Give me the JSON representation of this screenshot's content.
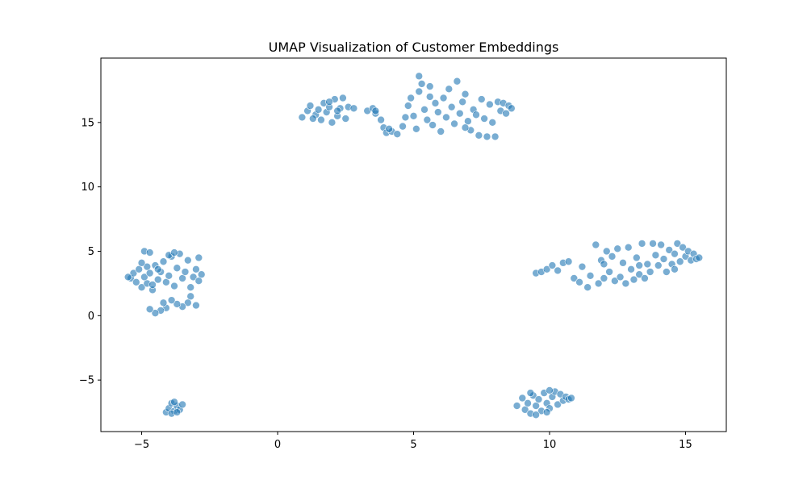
{
  "chart_data": {
    "type": "scatter",
    "title": "UMAP Visualization of Customer Embeddings",
    "xlabel": "",
    "ylabel": "",
    "xlim": [
      -6.5,
      16.5
    ],
    "ylim": [
      -9,
      20
    ],
    "x_ticks": [
      -5,
      0,
      5,
      10,
      15
    ],
    "y_ticks": [
      -5,
      0,
      5,
      10,
      15
    ],
    "x_tick_labels": [
      "−5",
      "0",
      "5",
      "10",
      "15"
    ],
    "y_tick_labels": [
      "−5",
      "0",
      "5",
      "10",
      "15"
    ],
    "grid": false,
    "legend": "none",
    "marker_color": "#1f77b4",
    "marker_edge_color": "#ffffff",
    "marker_alpha": 0.6,
    "series": [
      {
        "points": [
          [
            -5.4,
            2.9
          ],
          [
            -5.3,
            3.3
          ],
          [
            -5.2,
            2.6
          ],
          [
            -5.1,
            3.6
          ],
          [
            -5.0,
            2.2
          ],
          [
            -4.9,
            3.0
          ],
          [
            -4.8,
            3.8
          ],
          [
            -4.8,
            2.5
          ],
          [
            -4.7,
            3.3
          ],
          [
            -4.6,
            2.0
          ],
          [
            -4.5,
            3.9
          ],
          [
            -4.4,
            2.8
          ],
          [
            -4.3,
            3.4
          ],
          [
            -4.2,
            4.2
          ],
          [
            -4.1,
            2.6
          ],
          [
            -4.0,
            3.1
          ],
          [
            -3.9,
            4.6
          ],
          [
            -3.8,
            2.3
          ],
          [
            -3.7,
            3.7
          ],
          [
            -3.6,
            4.8
          ],
          [
            -3.5,
            2.9
          ],
          [
            -3.4,
            3.4
          ],
          [
            -3.3,
            4.3
          ],
          [
            -3.2,
            2.2
          ],
          [
            -3.1,
            3.0
          ],
          [
            -3.0,
            3.6
          ],
          [
            -2.9,
            4.5
          ],
          [
            -2.9,
            2.7
          ],
          [
            -2.8,
            3.2
          ],
          [
            -3.2,
            1.5
          ],
          [
            -3.3,
            1.0
          ],
          [
            -3.5,
            0.7
          ],
          [
            -3.7,
            0.9
          ],
          [
            -3.9,
            1.2
          ],
          [
            -4.1,
            0.6
          ],
          [
            -4.2,
            1.0
          ],
          [
            -4.3,
            0.4
          ],
          [
            -4.5,
            0.2
          ],
          [
            -4.7,
            0.5
          ],
          [
            -3.0,
            0.8
          ],
          [
            -4.9,
            5.0
          ],
          [
            -4.7,
            4.9
          ],
          [
            -4.0,
            4.7
          ],
          [
            -3.8,
            4.9
          ],
          [
            -4.4,
            3.6
          ],
          [
            -5.0,
            4.1
          ],
          [
            -5.5,
            3.0
          ],
          [
            -4.6,
            2.4
          ]
        ]
      },
      {
        "points": [
          [
            -4.1,
            -7.5
          ],
          [
            -4.0,
            -7.2
          ],
          [
            -3.9,
            -6.8
          ],
          [
            -3.8,
            -7.4
          ],
          [
            -3.7,
            -7.0
          ],
          [
            -3.6,
            -7.3
          ],
          [
            -3.5,
            -6.9
          ],
          [
            -3.9,
            -7.6
          ],
          [
            -3.8,
            -6.7
          ],
          [
            -3.7,
            -7.5
          ]
        ]
      },
      {
        "points": [
          [
            0.9,
            15.4
          ],
          [
            1.1,
            15.9
          ],
          [
            1.2,
            16.3
          ],
          [
            1.4,
            15.6
          ],
          [
            1.5,
            16.0
          ],
          [
            1.6,
            15.2
          ],
          [
            1.7,
            16.5
          ],
          [
            1.8,
            15.8
          ],
          [
            1.9,
            16.2
          ],
          [
            2.0,
            15.0
          ],
          [
            2.1,
            16.8
          ],
          [
            2.2,
            15.5
          ],
          [
            2.3,
            16.1
          ],
          [
            2.4,
            16.9
          ],
          [
            2.5,
            15.3
          ],
          [
            2.6,
            16.2
          ],
          [
            2.8,
            16.1
          ],
          [
            1.3,
            15.3
          ],
          [
            1.9,
            16.6
          ],
          [
            2.2,
            15.9
          ]
        ]
      },
      {
        "points": [
          [
            3.3,
            15.9
          ],
          [
            3.5,
            16.1
          ],
          [
            3.6,
            15.7
          ],
          [
            3.8,
            15.2
          ],
          [
            3.9,
            14.6
          ],
          [
            4.0,
            14.2
          ],
          [
            4.2,
            14.3
          ],
          [
            4.4,
            14.1
          ],
          [
            4.6,
            14.7
          ],
          [
            4.7,
            15.4
          ],
          [
            4.8,
            16.3
          ],
          [
            4.9,
            16.9
          ],
          [
            5.0,
            15.5
          ],
          [
            5.1,
            14.5
          ],
          [
            5.2,
            17.4
          ],
          [
            5.3,
            18.0
          ],
          [
            5.2,
            18.6
          ],
          [
            5.4,
            16.0
          ],
          [
            5.5,
            15.2
          ],
          [
            5.6,
            17.0
          ],
          [
            5.7,
            14.8
          ],
          [
            5.8,
            16.5
          ],
          [
            5.9,
            15.8
          ],
          [
            6.0,
            14.3
          ],
          [
            6.1,
            16.9
          ],
          [
            6.2,
            15.4
          ],
          [
            6.3,
            17.6
          ],
          [
            6.4,
            16.2
          ],
          [
            6.5,
            14.9
          ],
          [
            6.6,
            18.2
          ],
          [
            6.7,
            15.7
          ],
          [
            6.8,
            16.6
          ],
          [
            6.9,
            17.2
          ],
          [
            7.0,
            15.1
          ],
          [
            7.1,
            14.4
          ],
          [
            7.2,
            16.0
          ],
          [
            7.3,
            15.6
          ],
          [
            7.4,
            14.0
          ],
          [
            7.5,
            16.8
          ],
          [
            7.6,
            15.3
          ],
          [
            7.7,
            13.9
          ],
          [
            7.8,
            16.4
          ],
          [
            7.9,
            15.0
          ],
          [
            8.0,
            13.9
          ],
          [
            8.1,
            16.6
          ],
          [
            8.2,
            15.9
          ],
          [
            8.3,
            16.5
          ],
          [
            8.4,
            15.7
          ],
          [
            8.5,
            16.3
          ],
          [
            8.6,
            16.1
          ],
          [
            3.6,
            15.9
          ],
          [
            4.1,
            14.5
          ],
          [
            5.6,
            17.8
          ],
          [
            6.9,
            14.6
          ]
        ]
      },
      {
        "points": [
          [
            9.5,
            3.3
          ],
          [
            9.7,
            3.4
          ],
          [
            9.9,
            3.6
          ],
          [
            10.1,
            3.9
          ],
          [
            10.3,
            3.5
          ],
          [
            10.5,
            4.1
          ],
          [
            10.7,
            4.2
          ],
          [
            10.9,
            2.9
          ],
          [
            11.1,
            2.6
          ],
          [
            11.2,
            3.8
          ],
          [
            11.4,
            2.2
          ],
          [
            11.5,
            3.1
          ],
          [
            11.7,
            5.5
          ],
          [
            11.8,
            2.5
          ],
          [
            11.9,
            4.3
          ],
          [
            12.0,
            2.9
          ],
          [
            12.1,
            5.0
          ],
          [
            12.2,
            3.4
          ],
          [
            12.3,
            4.6
          ],
          [
            12.4,
            2.7
          ],
          [
            12.5,
            5.2
          ],
          [
            12.6,
            3.0
          ],
          [
            12.7,
            4.1
          ],
          [
            12.8,
            2.5
          ],
          [
            12.9,
            5.3
          ],
          [
            13.0,
            3.6
          ],
          [
            13.1,
            2.8
          ],
          [
            13.2,
            4.5
          ],
          [
            13.3,
            3.2
          ],
          [
            13.4,
            5.6
          ],
          [
            13.5,
            2.9
          ],
          [
            13.6,
            4.0
          ],
          [
            13.7,
            3.4
          ],
          [
            13.8,
            5.6
          ],
          [
            13.9,
            4.7
          ],
          [
            14.0,
            3.9
          ],
          [
            14.1,
            5.5
          ],
          [
            14.2,
            4.4
          ],
          [
            14.3,
            3.4
          ],
          [
            14.4,
            5.1
          ],
          [
            14.5,
            4.0
          ],
          [
            14.6,
            4.8
          ],
          [
            14.7,
            5.6
          ],
          [
            14.8,
            4.2
          ],
          [
            14.9,
            5.3
          ],
          [
            15.0,
            4.6
          ],
          [
            15.1,
            5.0
          ],
          [
            15.2,
            4.3
          ],
          [
            15.3,
            4.8
          ],
          [
            15.4,
            4.4
          ],
          [
            15.5,
            4.5
          ],
          [
            12.0,
            4.0
          ],
          [
            13.3,
            3.9
          ],
          [
            14.6,
            3.6
          ]
        ]
      },
      {
        "points": [
          [
            8.8,
            -7.0
          ],
          [
            9.0,
            -6.4
          ],
          [
            9.1,
            -7.3
          ],
          [
            9.2,
            -6.8
          ],
          [
            9.3,
            -7.6
          ],
          [
            9.4,
            -6.2
          ],
          [
            9.5,
            -7.0
          ],
          [
            9.6,
            -6.5
          ],
          [
            9.7,
            -7.4
          ],
          [
            9.8,
            -6.0
          ],
          [
            9.9,
            -6.8
          ],
          [
            10.0,
            -7.2
          ],
          [
            10.1,
            -6.3
          ],
          [
            10.2,
            -5.9
          ],
          [
            10.3,
            -6.9
          ],
          [
            10.4,
            -6.1
          ],
          [
            10.5,
            -6.6
          ],
          [
            10.6,
            -6.3
          ],
          [
            10.7,
            -6.5
          ],
          [
            10.8,
            -6.4
          ],
          [
            9.5,
            -7.7
          ],
          [
            9.3,
            -6.0
          ],
          [
            10.0,
            -5.8
          ],
          [
            9.9,
            -7.5
          ]
        ]
      }
    ]
  }
}
